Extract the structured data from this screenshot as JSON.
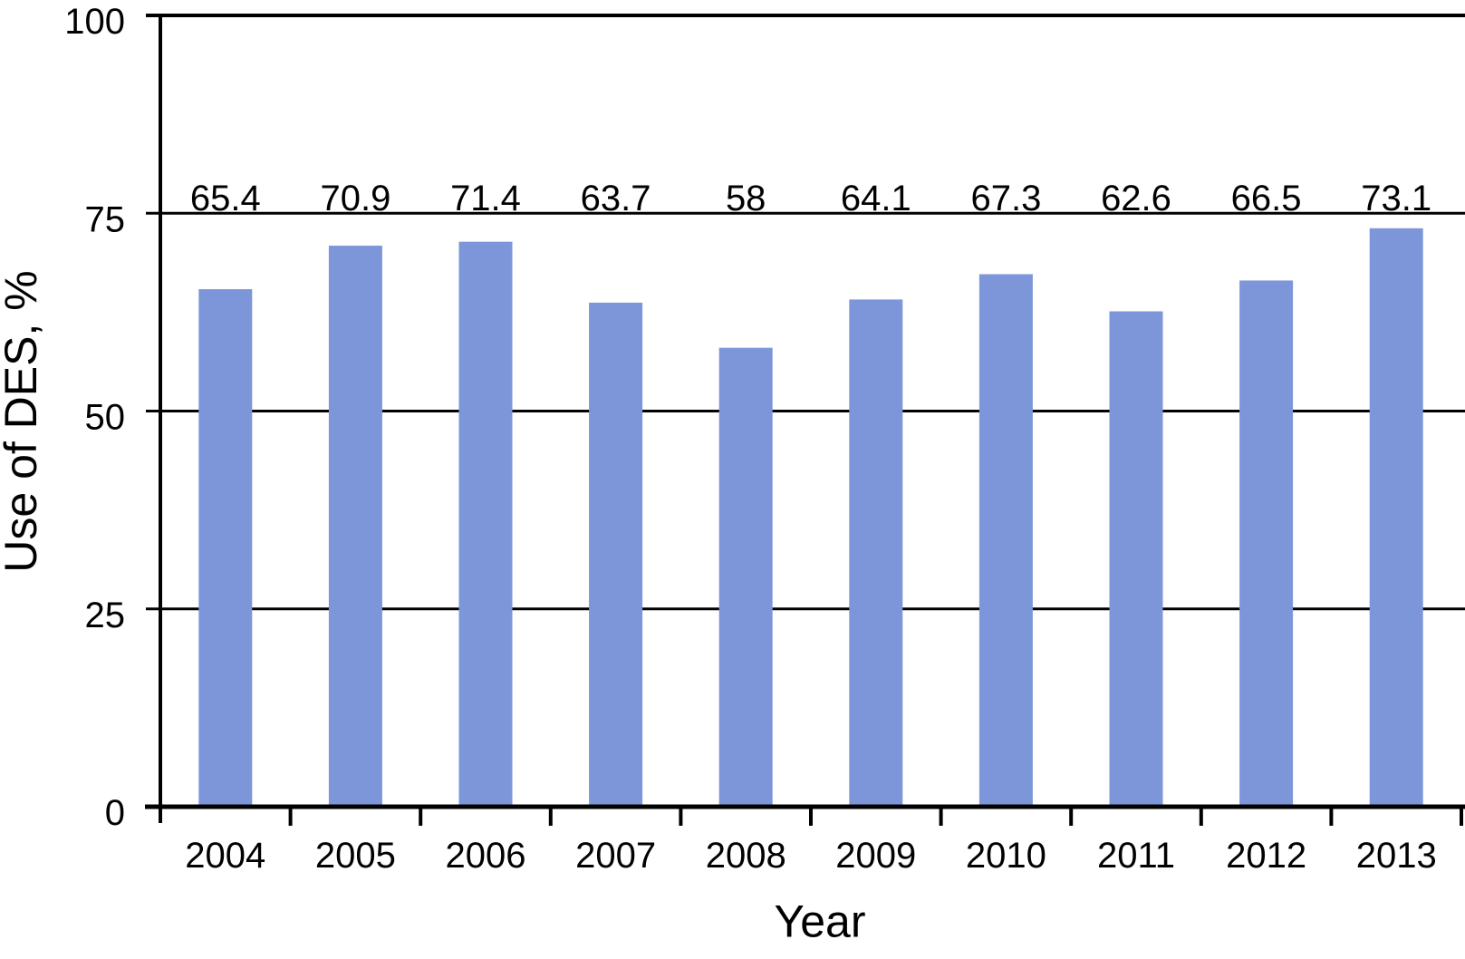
{
  "chart_data": {
    "type": "bar",
    "title": "",
    "categories": [
      "2004",
      "2005",
      "2006",
      "2007",
      "2008",
      "2009",
      "2010",
      "2011",
      "2012",
      "2013"
    ],
    "values": [
      65.4,
      70.9,
      71.4,
      63.7,
      58,
      64.1,
      67.3,
      62.6,
      66.5,
      73.1
    ],
    "value_labels": [
      "65.4",
      "70.9",
      "71.4",
      "63.7",
      "58",
      "64.1",
      "67.3",
      "62.6",
      "66.5",
      "73.1"
    ],
    "xlabel": "Year",
    "ylabel": "Use of DES, %",
    "ylim": [
      0,
      100
    ],
    "yticks": [
      0,
      25,
      50,
      75,
      100
    ],
    "ytick_labels": [
      "0",
      "25",
      "50",
      "75",
      "100"
    ],
    "grid": "horizontal-black-lines-behind-bars",
    "legend": "none",
    "colors": {
      "bar_fill": "#7D96D9",
      "axis": "#000000",
      "gridline": "#000000",
      "text": "#000000",
      "background": "#FFFFFF"
    }
  }
}
